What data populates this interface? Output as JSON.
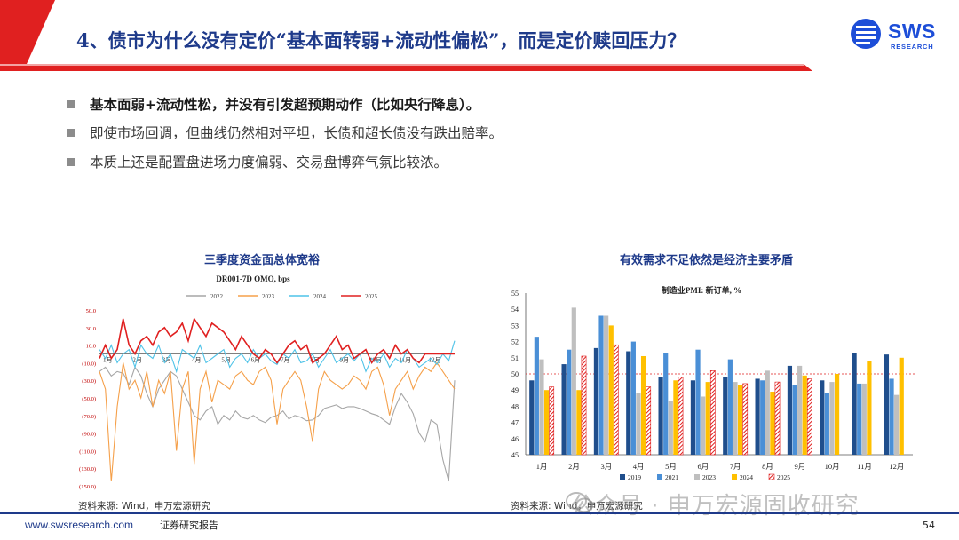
{
  "header": {
    "title": "4、债市为什么没有定价“基本面转弱+流动性偏松”，而是定价赎回压力？",
    "logo_text": "SWS",
    "logo_sub": "RESEARCH",
    "accent": "#e02020",
    "brand": "#1e3a8a"
  },
  "bullets": [
    "基本面弱+流动性松，并没有引发超预期动作（比如央行降息）。",
    "即使市场回调，但曲线仍然相对平坦，长债和超长债没有跌出赔率。",
    "本质上还是配置盘进场力度偏弱、交易盘博弈气氛比较浓。"
  ],
  "left_chart": {
    "heading": "三季度资金面总体宽裕",
    "source": "资料来源: Wind，申万宏源研究"
  },
  "right_chart": {
    "heading": "有效需求不足依然是经济主要矛盾",
    "source": "资料来源: Wind，申万宏源研究"
  },
  "chart_data": [
    {
      "type": "line",
      "title": "DR001-7D OMO, bps",
      "x_tick_labels": [
        "1月",
        "2月",
        "3月",
        "4月",
        "5月",
        "6月",
        "7月",
        "8月",
        "9月",
        "10月",
        "11月",
        "12月"
      ],
      "y_tick_labels": [
        "50.0",
        "30.0",
        "10.0",
        "(10.0)",
        "(30.0)",
        "(50.0)",
        "(70.0)",
        "(90.0)",
        "(110.0)",
        "(130.0)",
        "(150.0)"
      ],
      "ylim": [
        -150,
        50
      ],
      "series": [
        {
          "name": "2022",
          "color": "#a6a6a6",
          "values": [
            -20,
            -15,
            -25,
            -20,
            -22,
            -35,
            -15,
            -25,
            -45,
            -60,
            -40,
            -30,
            -20,
            -25,
            -40,
            -55,
            -70,
            -75,
            -65,
            -60,
            -80,
            -70,
            -75,
            -65,
            -72,
            -74,
            -70,
            -75,
            -78,
            -72,
            -70,
            -65,
            -74,
            -70,
            -72,
            -76,
            -75,
            -70,
            -62,
            -60,
            -58,
            -62,
            -60,
            -60,
            -62,
            -65,
            -68,
            -70,
            -75,
            -80,
            -60,
            -45,
            -55,
            -68,
            -90,
            -100,
            -75,
            -80,
            -120,
            -145,
            -30
          ]
        },
        {
          "name": "2023",
          "color": "#f5a04a",
          "values": [
            -20,
            -40,
            -145,
            -60,
            -10,
            -40,
            -30,
            -50,
            -20,
            -60,
            -30,
            -45,
            -20,
            -110,
            -40,
            -20,
            -125,
            -40,
            -20,
            -55,
            -30,
            -35,
            -40,
            -25,
            -20,
            -30,
            -35,
            -20,
            -15,
            -30,
            -80,
            -40,
            -30,
            -20,
            -30,
            -60,
            -100,
            -40,
            -20,
            -30,
            -35,
            -40,
            -35,
            -25,
            -30,
            -40,
            -20,
            -15,
            -35,
            -70,
            -40,
            -30,
            -20,
            -40,
            -25,
            -15,
            -20,
            -10,
            -20,
            -30,
            -40
          ]
        },
        {
          "name": "2024",
          "color": "#4fc3e8",
          "values": [
            5,
            -5,
            10,
            -10,
            0,
            5,
            -15,
            10,
            0,
            -5,
            10,
            -10,
            0,
            -20,
            5,
            0,
            -5,
            10,
            -10,
            -5,
            0,
            5,
            -15,
            -5,
            0,
            -10,
            5,
            -5,
            0,
            -8,
            -12,
            0,
            -5,
            5,
            -10,
            -8,
            0,
            -15,
            -5,
            5,
            -10,
            -5,
            0,
            -8,
            0,
            -20,
            -5,
            -10,
            0,
            -15,
            -5,
            -10,
            5,
            -5,
            -15,
            -10,
            -5,
            -12,
            0,
            -8,
            15
          ]
        },
        {
          "name": "2025",
          "color": "#e02020",
          "values": [
            -5,
            10,
            -5,
            5,
            40,
            10,
            0,
            15,
            20,
            10,
            25,
            30,
            20,
            25,
            35,
            15,
            40,
            30,
            20,
            35,
            30,
            25,
            15,
            5,
            20,
            10,
            0,
            -5,
            5,
            0,
            -10,
            0,
            10,
            15,
            5,
            10,
            -10,
            -5,
            0,
            10,
            20,
            5,
            10,
            -5,
            0,
            5,
            -10,
            0,
            5,
            -5,
            10,
            0,
            5,
            -5,
            -10,
            0,
            0,
            0,
            0,
            0,
            0
          ]
        }
      ],
      "legend": "top"
    },
    {
      "type": "bar",
      "title": "制造业PMI: 新订单, %",
      "categories": [
        "1月",
        "2月",
        "3月",
        "4月",
        "5月",
        "6月",
        "7月",
        "8月",
        "9月",
        "10月",
        "11月",
        "12月"
      ],
      "ylim": [
        45,
        55
      ],
      "y_ticks": [
        45,
        46,
        47,
        48,
        49,
        50,
        51,
        52,
        53,
        54,
        55
      ],
      "reference_line": 50,
      "series": [
        {
          "name": "2019",
          "color": "#1f4e8c",
          "values": [
            49.6,
            50.6,
            51.6,
            51.4,
            49.8,
            49.6,
            49.8,
            49.7,
            50.5,
            49.6,
            51.3,
            51.2
          ]
        },
        {
          "name": "2021",
          "color": "#4a8fd6",
          "values": [
            52.3,
            51.5,
            53.6,
            52.0,
            51.3,
            51.5,
            50.9,
            49.6,
            49.3,
            48.8,
            49.4,
            49.7
          ]
        },
        {
          "name": "2023",
          "color": "#bfbfbf",
          "values": [
            50.9,
            54.1,
            53.6,
            48.8,
            48.3,
            48.6,
            49.5,
            50.2,
            50.5,
            49.5,
            49.4,
            48.7
          ]
        },
        {
          "name": "2024",
          "color": "#ffc000",
          "values": [
            49.0,
            49.0,
            53.0,
            51.1,
            49.6,
            49.5,
            49.3,
            48.9,
            49.9,
            50.0,
            50.8,
            51.0
          ]
        },
        {
          "name": "2025",
          "color": "#e02020",
          "values": [
            49.2,
            51.1,
            51.8,
            49.2,
            49.8,
            50.2,
            49.4,
            49.5,
            49.7,
            null,
            null,
            null
          ]
        }
      ],
      "legend": "bottom"
    }
  ],
  "footer": {
    "url": "www.swsresearch.com",
    "report": "证券研究报告",
    "page": "54",
    "watermark": "公众号 · 申万宏源固收研究"
  }
}
